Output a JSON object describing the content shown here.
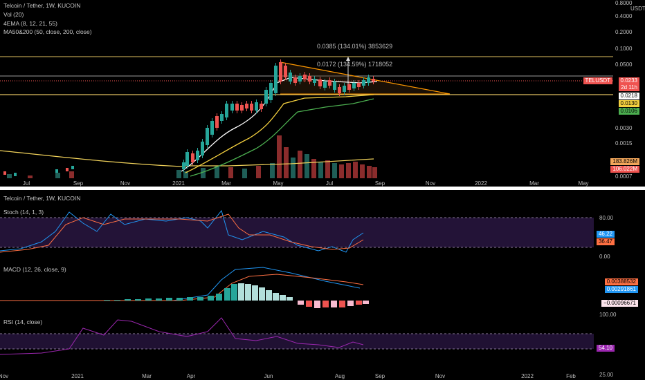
{
  "top": {
    "title": "Telcoin / Tether, 1W, KUCOIN",
    "vol": "Vol (20)",
    "ema": "4EMA (8, 12, 21, 55)",
    "ma": "MA50&200 (50, close, 200, close)",
    "currency": "USDT",
    "yticks": [
      "0.8000",
      "0.4000",
      "0.2000",
      "0.1000",
      "0.0500",
      "0.0030",
      "0.0015",
      "0.0007"
    ],
    "yticks_mid": [
      "0.0218",
      "0.0130",
      "0.0106"
    ],
    "xticks": [
      "Jul",
      "Sep",
      "Nov",
      "2021",
      "Mar",
      "May",
      "Jul",
      "Sep",
      "Nov",
      "2022",
      "Mar",
      "May"
    ],
    "measure1": "0.0385 (134.01%) 3853629",
    "measure2": "0.0172 (134.59%) 1718052",
    "ticker_badge": "TELUSDT",
    "price_badge": "0.0233",
    "countdown": "2d 11h",
    "vol1": "183.826M",
    "vol2": "106.022M"
  },
  "bottom": {
    "title": "Telcoin / Tether, 1W, KUCOIN",
    "stoch": "Stoch (14, 1, 3)",
    "stoch_ticks": [
      "80.00",
      "0.00"
    ],
    "stoch_k": "46.22",
    "stoch_d": "36.47",
    "macd": "MACD (12, 26, close, 9)",
    "macd_v1": "0.00388532",
    "macd_v2": "0.00291861",
    "macd_hist": "−0.00096671",
    "rsi": "RSI (14, close)",
    "rsi_ticks": [
      "100.00",
      "25.00"
    ],
    "rsi_val": "54.10",
    "xticks": [
      "Nov",
      "2021",
      "Mar",
      "Apr",
      "Jun",
      "Aug",
      "Sep",
      "Nov",
      "2022",
      "Feb"
    ]
  },
  "colors": {
    "up": "#26a69a",
    "down": "#ef5350",
    "yellow": "#ffeb3b",
    "orange": "#ff9800",
    "purple": "#9c27b0",
    "blue": "#2196f3"
  }
}
